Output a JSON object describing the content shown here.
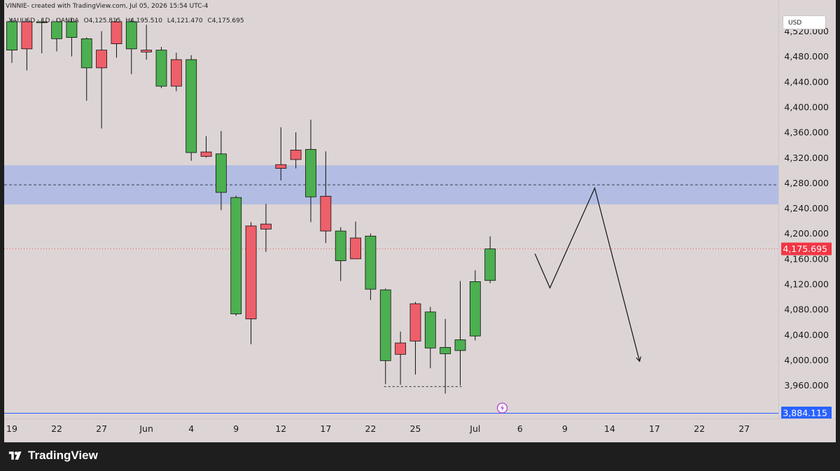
{
  "header": {
    "title": "VINNIE- created with TradingView.com, Jul 05, 2026 15:54 UTC-4"
  },
  "legend": {
    "symbol": "XAUUSD · 1D · OANDA",
    "open": "O4,125.815",
    "high": "H4,195.510",
    "low": "L4,121.470",
    "close": "C4,175.695"
  },
  "currency": "USD",
  "brand": {
    "name": "TradingView",
    "logo_icon": "tradingview-logo-icon"
  },
  "colors": {
    "background": "#ddd5d5",
    "bull": "#4caf50",
    "bear": "#ef5f6a",
    "zone": "#b3bde3",
    "price_label": "#f23645",
    "low_label": "#2962ff"
  },
  "chart_data": {
    "type": "candlestick",
    "symbol": "XAUUSD",
    "timeframe": "1D",
    "ylim": [
      3884.115,
      4535
    ],
    "y_ticks": [
      3920,
      3960,
      4000,
      4040,
      4080,
      4120,
      4160,
      4200,
      4240,
      4280,
      4320,
      4360,
      4400,
      4440,
      4480,
      4520
    ],
    "y_tick_labels": [
      "3,920.000",
      "3,960.000",
      "4,000.000",
      "4,040.000",
      "4,080.000",
      "4,120.000",
      "4,160.000",
      "4,200.000",
      "4,240.000",
      "4,280.000",
      "4,320.000",
      "4,360.000",
      "4,400.000",
      "4,440.000",
      "4,480.000",
      "4,520.000"
    ],
    "x_ticks": [
      {
        "date": "2026-05-19",
        "label": "19"
      },
      {
        "date": "2026-05-22",
        "label": "22"
      },
      {
        "date": "2026-05-27",
        "label": "27"
      },
      {
        "date": "2026-06-01",
        "label": "Jun"
      },
      {
        "date": "2026-06-04",
        "label": "4"
      },
      {
        "date": "2026-06-09",
        "label": "9"
      },
      {
        "date": "2026-06-12",
        "label": "12"
      },
      {
        "date": "2026-06-17",
        "label": "17"
      },
      {
        "date": "2026-06-22",
        "label": "22"
      },
      {
        "date": "2026-06-25",
        "label": "25"
      },
      {
        "date": "2026-07-01",
        "label": "Jul"
      },
      {
        "date": "2026-07-06",
        "label": "6"
      },
      {
        "date": "2026-07-09",
        "label": "9"
      },
      {
        "date": "2026-07-14",
        "label": "14"
      },
      {
        "date": "2026-07-17",
        "label": "17"
      },
      {
        "date": "2026-07-22",
        "label": "22"
      },
      {
        "date": "2026-07-27",
        "label": "27"
      }
    ],
    "candles": [
      {
        "date": "2026-05-19",
        "open": 4490,
        "high": 4540,
        "low": 4470,
        "close": 4535
      },
      {
        "date": "2026-05-20",
        "open": 4535,
        "high": 4540,
        "low": 4458,
        "close": 4492
      },
      {
        "date": "2026-05-21",
        "open": 4535,
        "high": 4540,
        "low": 4485,
        "close": 4535
      },
      {
        "date": "2026-05-22",
        "open": 4508,
        "high": 4540,
        "low": 4488,
        "close": 4535
      },
      {
        "date": "2026-05-25",
        "open": 4510,
        "high": 4540,
        "low": 4480,
        "close": 4535
      },
      {
        "date": "2026-05-26",
        "open": 4462,
        "high": 4510,
        "low": 4410,
        "close": 4508
      },
      {
        "date": "2026-05-27",
        "open": 4490,
        "high": 4520,
        "low": 4366,
        "close": 4462
      },
      {
        "date": "2026-05-28",
        "open": 4535,
        "high": 4540,
        "low": 4478,
        "close": 4500
      },
      {
        "date": "2026-05-29",
        "open": 4492,
        "high": 4540,
        "low": 4452,
        "close": 4535
      },
      {
        "date": "2026-06-01",
        "open": 4490,
        "high": 4530,
        "low": 4475,
        "close": 4487
      },
      {
        "date": "2026-06-02",
        "open": 4433,
        "high": 4495,
        "low": 4430,
        "close": 4490
      },
      {
        "date": "2026-06-03",
        "open": 4475,
        "high": 4486,
        "low": 4425,
        "close": 4433
      },
      {
        "date": "2026-06-04",
        "open": 4328,
        "high": 4482,
        "low": 4315,
        "close": 4475
      },
      {
        "date": "2026-06-05",
        "open": 4329,
        "high": 4354,
        "low": 4320,
        "close": 4322
      },
      {
        "date": "2026-06-08",
        "open": 4265,
        "high": 4362,
        "low": 4237,
        "close": 4326
      },
      {
        "date": "2026-06-09",
        "open": 4073,
        "high": 4260,
        "low": 4070,
        "close": 4257
      },
      {
        "date": "2026-06-10",
        "open": 4212,
        "high": 4218,
        "low": 4025,
        "close": 4065
      },
      {
        "date": "2026-06-11",
        "open": 4215,
        "high": 4247,
        "low": 4171,
        "close": 4207
      },
      {
        "date": "2026-06-12",
        "open": 4309,
        "high": 4368,
        "low": 4284,
        "close": 4303
      },
      {
        "date": "2026-06-15",
        "open": 4332,
        "high": 4360,
        "low": 4303,
        "close": 4317
      },
      {
        "date": "2026-06-16",
        "open": 4258,
        "high": 4380,
        "low": 4218,
        "close": 4333
      },
      {
        "date": "2026-06-17",
        "open": 4259,
        "high": 4330,
        "low": 4185,
        "close": 4204
      },
      {
        "date": "2026-06-18",
        "open": 4157,
        "high": 4210,
        "low": 4125,
        "close": 4204
      },
      {
        "date": "2026-06-19",
        "open": 4193,
        "high": 4219,
        "low": 4161,
        "close": 4160
      },
      {
        "date": "2026-06-22",
        "open": 4112,
        "high": 4200,
        "low": 4095,
        "close": 4196
      },
      {
        "date": "2026-06-23",
        "open": 3999,
        "high": 4113,
        "low": 3962,
        "close": 4111
      },
      {
        "date": "2026-06-24",
        "open": 4027,
        "high": 4045,
        "low": 3961,
        "close": 4009
      },
      {
        "date": "2026-06-25",
        "open": 4089,
        "high": 4092,
        "low": 3977,
        "close": 4030
      },
      {
        "date": "2026-06-26",
        "open": 4019,
        "high": 4084,
        "low": 3987,
        "close": 4076
      },
      {
        "date": "2026-06-29",
        "open": 4010,
        "high": 4065,
        "low": 3947,
        "close": 4020
      },
      {
        "date": "2026-06-30",
        "open": 4015,
        "high": 4125,
        "low": 3960,
        "close": 4032
      },
      {
        "date": "2026-07-01",
        "open": 4038,
        "high": 4142,
        "low": 4031,
        "close": 4124
      },
      {
        "date": "2026-07-02",
        "open": 4125.815,
        "high": 4195.51,
        "low": 4121.47,
        "close": 4175.695
      }
    ],
    "current_price": {
      "value": 4175.695,
      "label": "4,175.695"
    },
    "low_marker": {
      "value": 3884.115,
      "label": "3,884.115"
    },
    "zone": {
      "from": 4246,
      "to": 4308,
      "mid": 4277
    },
    "swing_low_line": {
      "value": 3958,
      "from": "2026-06-23",
      "to": "2026-06-30"
    },
    "projection": [
      {
        "date": "2026-07-07",
        "price": 4168
      },
      {
        "date": "2026-07-08",
        "price": 4114
      },
      {
        "date": "2026-07-12",
        "price": 4272
      },
      {
        "date": "2026-07-16",
        "price": 3998
      }
    ]
  }
}
